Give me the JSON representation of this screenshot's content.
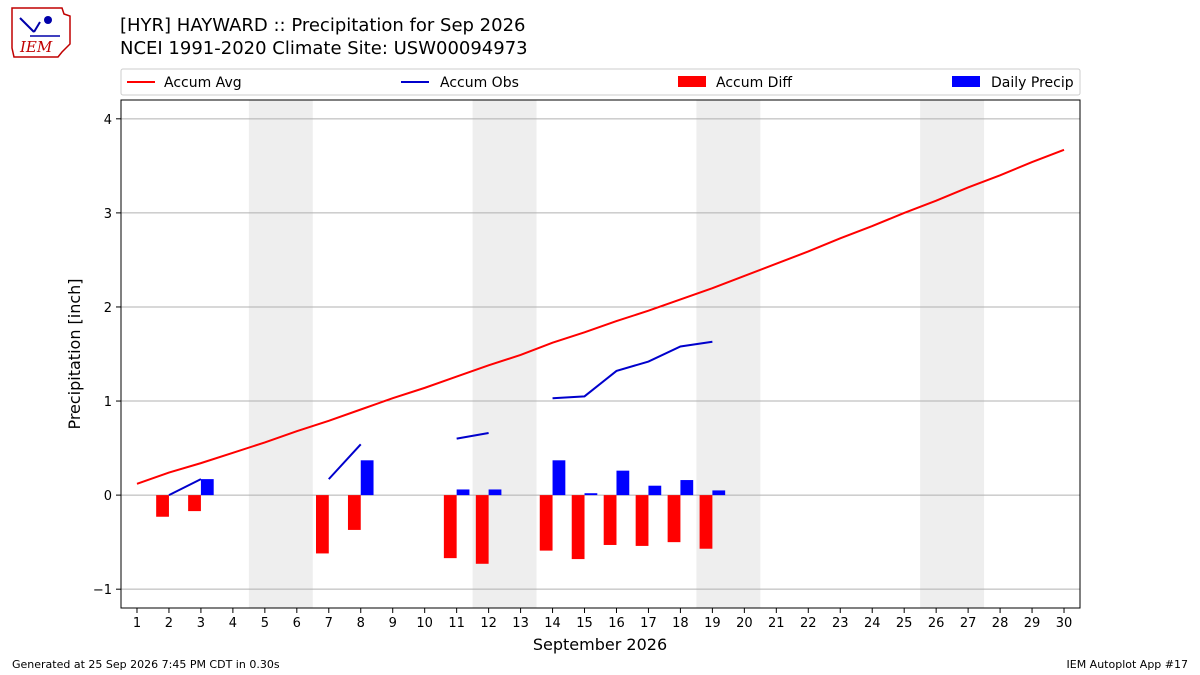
{
  "header": {
    "title_line1": "[HYR] HAYWARD :: Precipitation for Sep 2026",
    "title_line2": "NCEI 1991-2020 Climate Site: USW00094973"
  },
  "logo": {
    "text": "IEM"
  },
  "footer": {
    "left": "Generated at 25 Sep 2026 7:45 PM CDT in 0.30s",
    "right": "IEM Autoplot App #17"
  },
  "colors": {
    "accum_avg": "#ff0000",
    "accum_obs": "#0000cc",
    "accum_diff": "#ff0000",
    "daily_precip": "#0000ff",
    "weekend_shade": "#eeeeee",
    "grid": "#b0b0b0"
  },
  "chart_data": {
    "type": "bar",
    "xlabel": "September 2026",
    "ylabel": "Precipitation [inch]",
    "xlim": [
      0.5,
      30.5
    ],
    "ylim": [
      -1.2,
      4.2
    ],
    "yticks": [
      -1,
      0,
      1,
      2,
      3,
      4
    ],
    "ytick_labels": [
      "−1",
      "0",
      "1",
      "2",
      "3",
      "4"
    ],
    "x": [
      1,
      2,
      3,
      4,
      5,
      6,
      7,
      8,
      9,
      10,
      11,
      12,
      13,
      14,
      15,
      16,
      17,
      18,
      19,
      20,
      21,
      22,
      23,
      24,
      25,
      26,
      27,
      28,
      29,
      30
    ],
    "x_tick_labels": [
      "1",
      "2",
      "3",
      "4",
      "5",
      "6",
      "7",
      "8",
      "9",
      "10",
      "11",
      "12",
      "13",
      "14",
      "15",
      "16",
      "17",
      "18",
      "19",
      "20",
      "21",
      "22",
      "23",
      "24",
      "25",
      "26",
      "27",
      "28",
      "29",
      "30"
    ],
    "grid": "horizontal",
    "legend_placement": "top",
    "shaded_weekends": [
      [
        5,
        6
      ],
      [
        12,
        13
      ],
      [
        19,
        20
      ],
      [
        26,
        27
      ]
    ],
    "series": [
      {
        "name": "Accum Avg",
        "kind": "line",
        "values": [
          0.12,
          0.24,
          0.34,
          0.45,
          0.56,
          0.68,
          0.79,
          0.91,
          1.03,
          1.14,
          1.26,
          1.38,
          1.49,
          1.62,
          1.73,
          1.85,
          1.96,
          2.08,
          2.2,
          2.33,
          2.46,
          2.59,
          2.73,
          2.86,
          3.0,
          3.13,
          3.27,
          3.4,
          3.54,
          3.67
        ]
      },
      {
        "name": "Accum Obs",
        "kind": "line",
        "values": [
          null,
          0.0,
          0.17,
          null,
          null,
          null,
          0.17,
          0.54,
          null,
          null,
          0.6,
          0.66,
          null,
          1.03,
          1.05,
          1.32,
          1.42,
          1.58,
          1.63,
          null,
          null,
          null,
          null,
          null,
          null,
          null,
          null,
          null,
          null,
          null
        ]
      },
      {
        "name": "Accum Diff",
        "kind": "bar",
        "values": [
          null,
          -0.23,
          -0.17,
          null,
          null,
          null,
          -0.62,
          -0.37,
          null,
          null,
          -0.67,
          -0.73,
          null,
          -0.59,
          -0.68,
          -0.53,
          -0.54,
          -0.5,
          -0.57,
          null,
          null,
          null,
          null,
          null,
          null,
          null,
          null,
          null,
          null,
          null
        ]
      },
      {
        "name": "Daily Precip",
        "kind": "bar",
        "values": [
          null,
          0.0,
          0.17,
          null,
          null,
          null,
          0.0,
          0.37,
          null,
          null,
          0.06,
          0.06,
          null,
          0.37,
          0.02,
          0.26,
          0.1,
          0.16,
          0.05,
          null,
          null,
          null,
          null,
          null,
          null,
          null,
          null,
          null,
          null,
          null
        ]
      }
    ]
  }
}
